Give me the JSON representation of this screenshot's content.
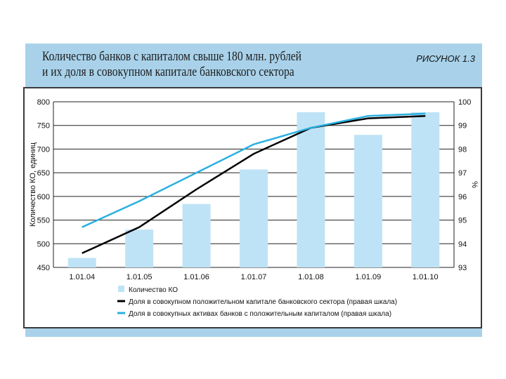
{
  "header": {
    "title_line1": "Количество банков с капиталом свыше 180 млн. рублей",
    "title_line2": "и их доля в совокупном капитале банковского сектора",
    "figure_label": "РИСУНОК 1.3"
  },
  "chart_data": {
    "type": "bar",
    "categories": [
      "1.01.04",
      "1.01.05",
      "1.01.06",
      "1.01.07",
      "1.01.08",
      "1.01.09",
      "1.01.10"
    ],
    "ylabel": "Количество КО, единиц",
    "y2label": "%",
    "ylim": [
      450,
      800
    ],
    "y_ticks": [
      450,
      500,
      550,
      600,
      650,
      700,
      750,
      800
    ],
    "y2lim": [
      93,
      100
    ],
    "y2_ticks": [
      93,
      94,
      95,
      96,
      97,
      98,
      99,
      100
    ],
    "grid": true,
    "legend_position": "bottom",
    "series": [
      {
        "name": "Количество КО",
        "kind": "bar",
        "axis": "left",
        "color": "#bfe3f6",
        "values": [
          470,
          530,
          584,
          657,
          778,
          730,
          778
        ]
      },
      {
        "name": "Доля в совокупном положительном капитале банковского сектора (правая шкала)",
        "kind": "line",
        "axis": "right",
        "color": "#000000",
        "values": [
          93.6,
          94.7,
          96.3,
          97.8,
          98.9,
          99.3,
          99.4
        ]
      },
      {
        "name": "Доля в совокупных активах банков с положительным капиталом (правая шкала)",
        "kind": "line",
        "axis": "right",
        "color": "#2ab0e0",
        "values": [
          94.7,
          95.8,
          97.0,
          98.2,
          98.9,
          99.4,
          99.5
        ]
      }
    ]
  }
}
